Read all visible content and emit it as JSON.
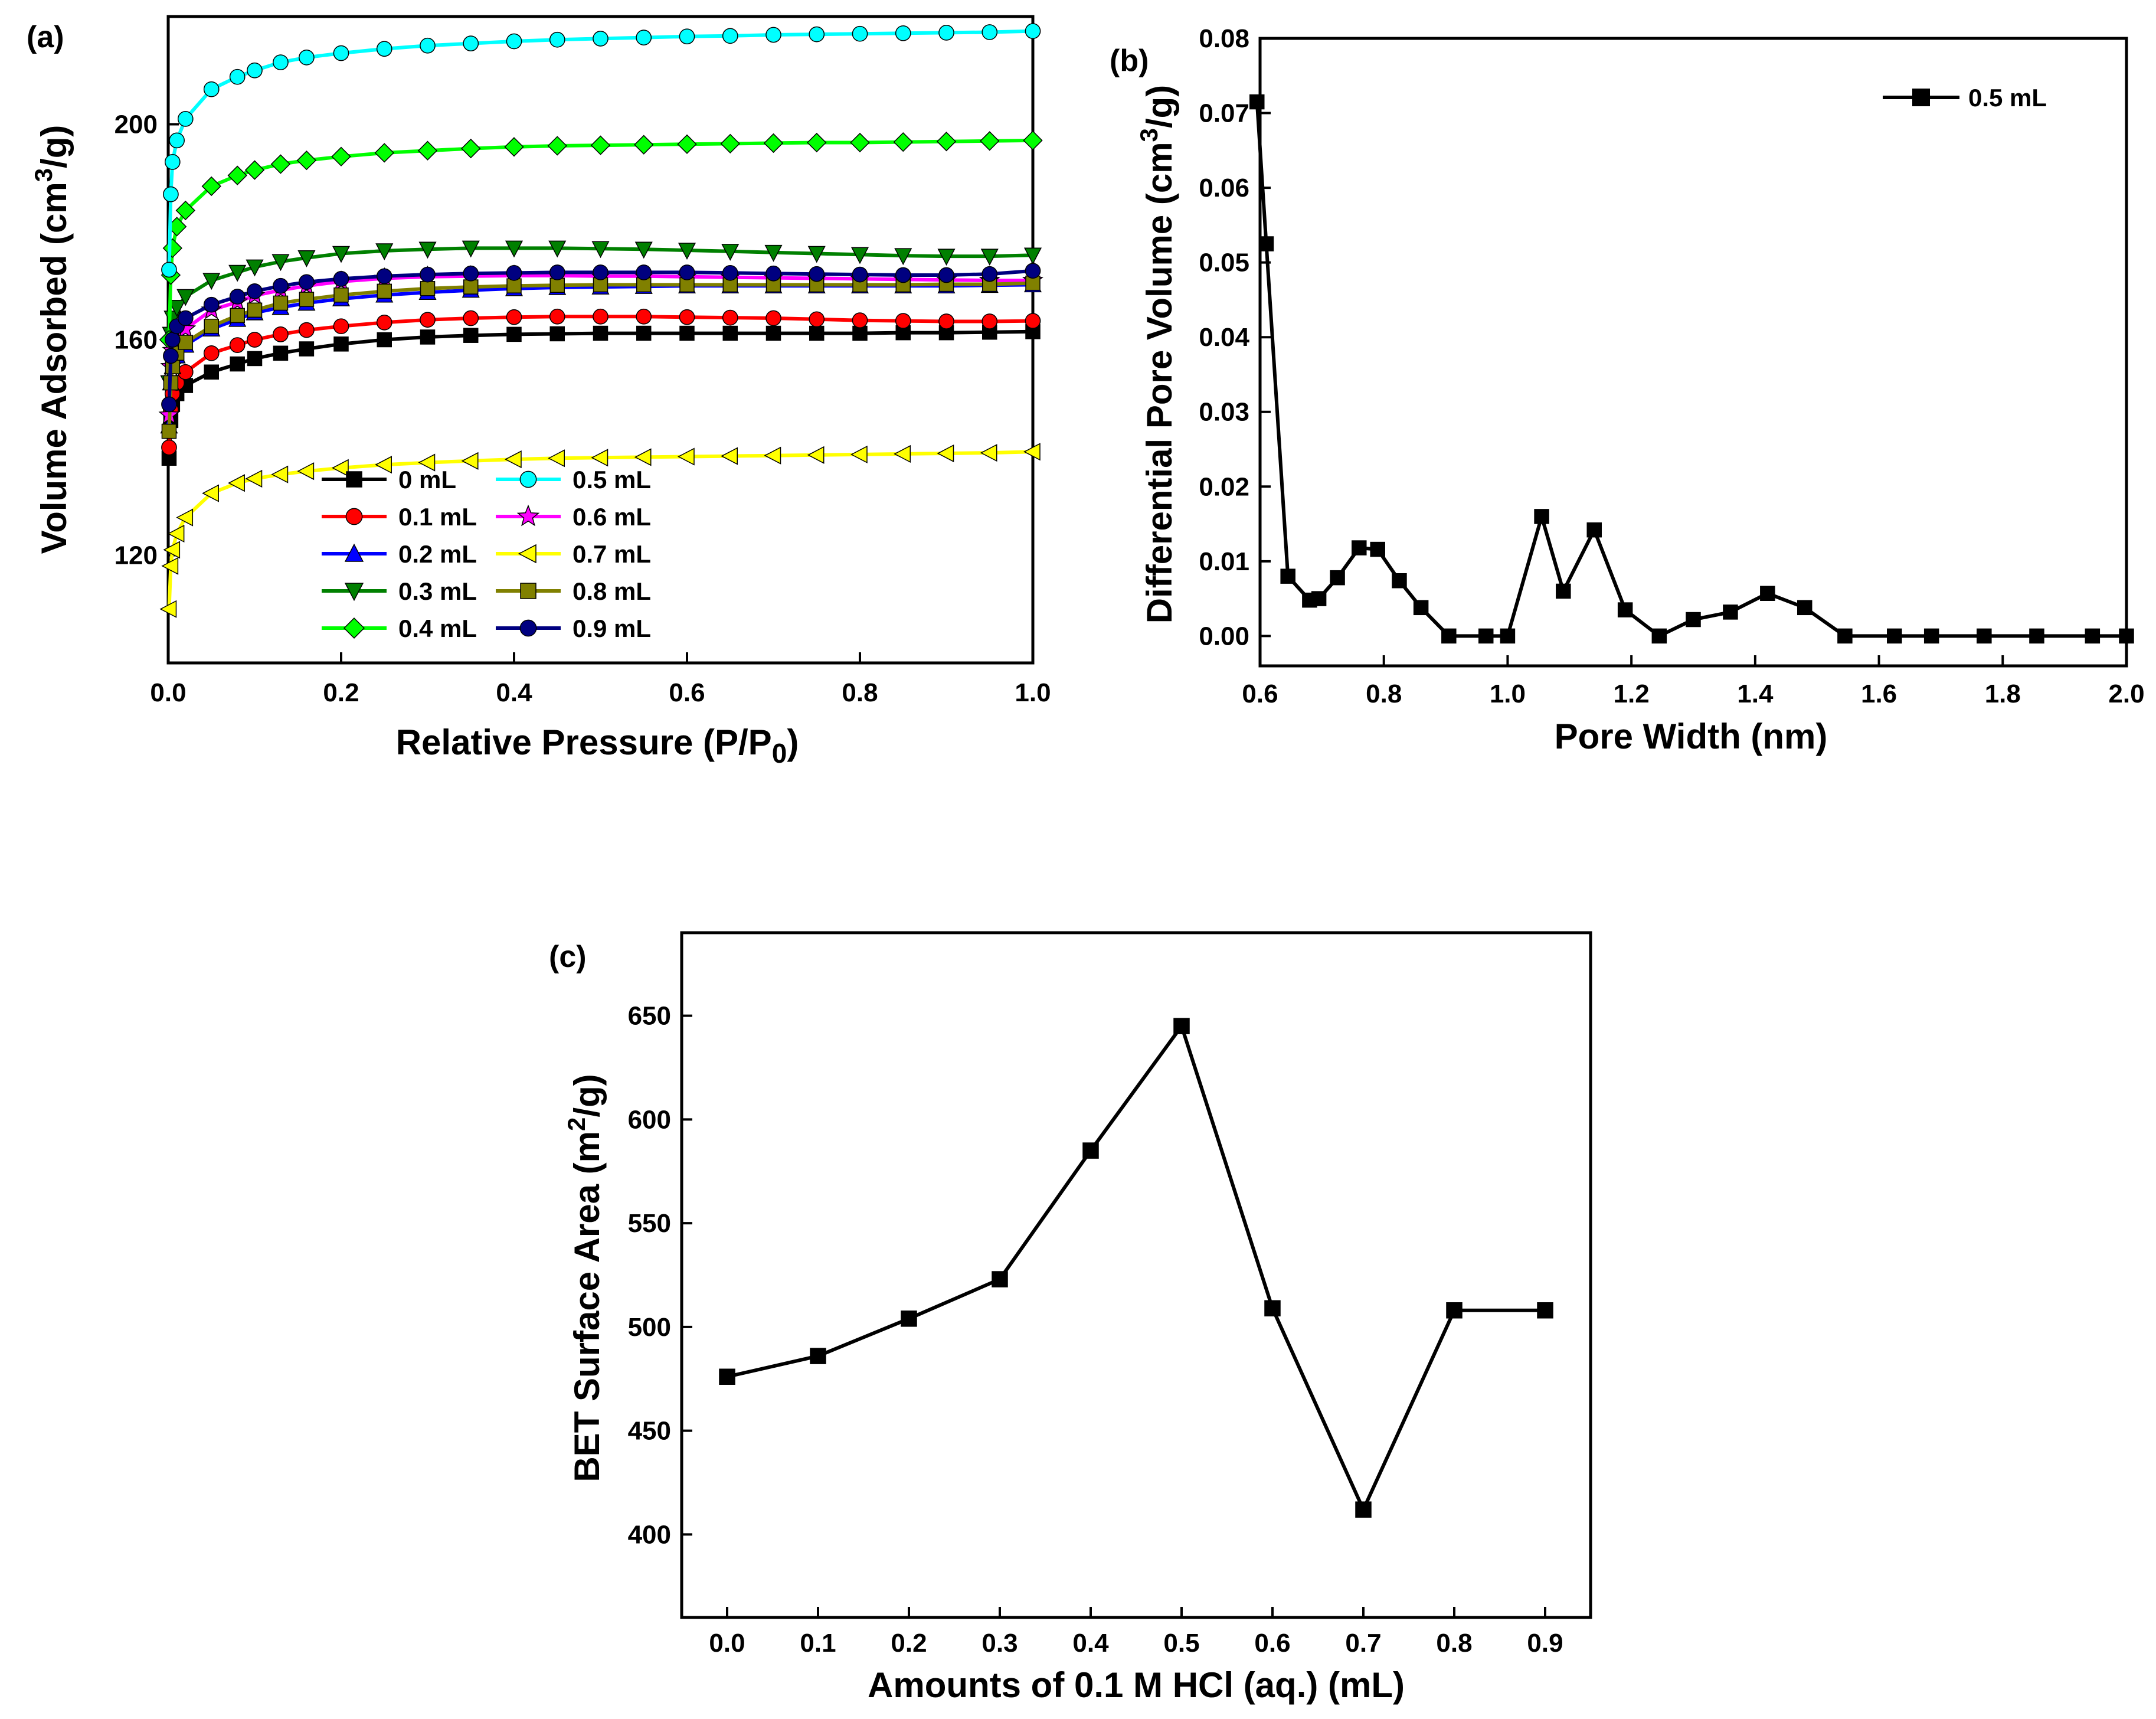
{
  "chart_data": [
    {
      "panel_label": "(a)",
      "type": "line",
      "title": "",
      "xlabel_main": "Relative Pressure (P/P",
      "xlabel_sub": "0",
      "xlabel_end": ")",
      "ylabel_main": "Volume Adsorbed (cm",
      "ylabel_sup": "3",
      "ylabel_end": "/g)",
      "xlim": [
        0,
        1.0
      ],
      "ylim": [
        100,
        220
      ],
      "xticks": [
        "0.0",
        "0.2",
        "0.4",
        "0.6",
        "0.8",
        "1.0"
      ],
      "xtick_values": [
        0,
        0.2,
        0.4,
        0.6,
        0.8,
        1.0
      ],
      "yticks": [
        "120",
        "160",
        "200"
      ],
      "ytick_values": [
        120,
        160,
        200
      ],
      "legend_position": "bottom-center",
      "x": [
        0.001,
        0.003,
        0.005,
        0.01,
        0.02,
        0.05,
        0.08,
        0.1,
        0.13,
        0.16,
        0.2,
        0.25,
        0.3,
        0.35,
        0.4,
        0.45,
        0.5,
        0.55,
        0.6,
        0.65,
        0.7,
        0.75,
        0.8,
        0.85,
        0.9,
        0.95,
        1.0
      ],
      "series": [
        {
          "name": "0 mL",
          "color": "#000000",
          "marker": "square",
          "values": [
            138,
            145,
            148,
            150,
            151.5,
            154,
            155.5,
            156.5,
            157.5,
            158.3,
            159.2,
            160,
            160.5,
            160.8,
            161,
            161.1,
            161.2,
            161.2,
            161.2,
            161.2,
            161.2,
            161.2,
            161.2,
            161.3,
            161.3,
            161.4,
            161.5
          ]
        },
        {
          "name": "0.1 mL",
          "color": "#ff0000",
          "marker": "circle",
          "values": [
            140,
            147,
            150,
            152,
            154,
            157.5,
            159,
            160,
            161,
            161.8,
            162.5,
            163.2,
            163.7,
            164,
            164.2,
            164.3,
            164.3,
            164.3,
            164.2,
            164.1,
            164,
            163.8,
            163.6,
            163.5,
            163.4,
            163.4,
            163.5
          ]
        },
        {
          "name": "0.2 mL",
          "color": "#0000ff",
          "marker": "triangle-up",
          "values": [
            144,
            152,
            155,
            157,
            159,
            162,
            163.8,
            165,
            166,
            166.8,
            167.6,
            168.3,
            168.8,
            169.2,
            169.5,
            169.7,
            169.8,
            169.9,
            170,
            170,
            170,
            170,
            170,
            170,
            170,
            170.1,
            170.2
          ]
        },
        {
          "name": "0.3 mL",
          "color": "#008000",
          "marker": "triangle-down",
          "values": [
            152,
            161,
            164,
            166,
            168,
            171,
            172.5,
            173.5,
            174.5,
            175.2,
            176,
            176.5,
            176.8,
            177,
            177,
            177,
            176.9,
            176.8,
            176.6,
            176.4,
            176.2,
            176,
            175.8,
            175.6,
            175.5,
            175.5,
            175.7
          ]
        },
        {
          "name": "0.4 mL",
          "color": "#00ff00",
          "marker": "diamond",
          "values": [
            160,
            172,
            177,
            181,
            184,
            188.5,
            190.5,
            191.5,
            192.6,
            193.3,
            194,
            194.7,
            195.1,
            195.5,
            195.8,
            196,
            196.1,
            196.2,
            196.3,
            196.4,
            196.5,
            196.6,
            196.6,
            196.7,
            196.8,
            196.9,
            197
          ]
        },
        {
          "name": "0.5 mL",
          "color": "#00ffff",
          "marker": "circle",
          "values": [
            173,
            187,
            193,
            197,
            201,
            206.5,
            208.8,
            210,
            211.5,
            212.4,
            213.2,
            214,
            214.6,
            215,
            215.4,
            215.7,
            215.9,
            216.1,
            216.3,
            216.4,
            216.6,
            216.7,
            216.8,
            216.9,
            217,
            217.1,
            217.3
          ]
        },
        {
          "name": "0.6 mL",
          "color": "#ff00ff",
          "marker": "star",
          "values": [
            146,
            155,
            158,
            160,
            162,
            165.5,
            167,
            168.2,
            169.2,
            170,
            170.8,
            171.4,
            171.7,
            171.8,
            171.9,
            171.9,
            171.8,
            171.8,
            171.7,
            171.6,
            171.5,
            171.4,
            171.3,
            171.2,
            171.1,
            171,
            171
          ]
        },
        {
          "name": "0.7 mL",
          "color": "#ffff00",
          "marker": "triangle-left",
          "values": [
            110,
            118,
            121,
            124,
            127,
            131.5,
            133.4,
            134.2,
            135,
            135.6,
            136.2,
            136.8,
            137.2,
            137.5,
            137.8,
            138,
            138.1,
            138.2,
            138.3,
            138.4,
            138.5,
            138.6,
            138.7,
            138.8,
            138.9,
            139,
            139.2
          ]
        },
        {
          "name": "0.8 mL",
          "color": "#808000",
          "marker": "square",
          "values": [
            143,
            152,
            155,
            157.5,
            159.5,
            162.5,
            164.5,
            165.5,
            166.8,
            167.5,
            168.3,
            169,
            169.5,
            169.8,
            170,
            170.1,
            170.2,
            170.2,
            170.2,
            170.2,
            170.2,
            170.2,
            170.2,
            170.2,
            170.3,
            170.3,
            170.5
          ]
        },
        {
          "name": "0.9 mL",
          "color": "#000080",
          "marker": "circle",
          "values": [
            148,
            157,
            160,
            162.5,
            164,
            166.5,
            168,
            169,
            170,
            170.7,
            171.3,
            171.8,
            172.1,
            172.3,
            172.4,
            172.5,
            172.5,
            172.5,
            172.5,
            172.4,
            172.3,
            172.2,
            172.1,
            172,
            172,
            172.2,
            172.8
          ]
        }
      ]
    },
    {
      "panel_label": "(b)",
      "type": "line",
      "title": "",
      "xlabel": "Pore Width (nm)",
      "ylabel_main": "Differential Pore Volume (cm",
      "ylabel_sup": "3",
      "ylabel_end": "/g)",
      "xlim": [
        0.6,
        2.0
      ],
      "ylim": [
        -0.004,
        0.08
      ],
      "xticks": [
        "0.6",
        "0.8",
        "1.0",
        "1.2",
        "1.4",
        "1.6",
        "1.8",
        "2.0"
      ],
      "xtick_values": [
        0.6,
        0.8,
        1.0,
        1.2,
        1.4,
        1.6,
        1.8,
        2.0
      ],
      "yticks": [
        "0.00",
        "0.01",
        "0.02",
        "0.03",
        "0.04",
        "0.05",
        "0.06",
        "0.07",
        "0.08"
      ],
      "ytick_values": [
        0,
        0.01,
        0.02,
        0.03,
        0.04,
        0.05,
        0.06,
        0.07,
        0.08
      ],
      "legend_position": "top-right",
      "series": [
        {
          "name": "0.5 mL",
          "color": "#000000",
          "marker": "square",
          "x": [
            0.595,
            0.61,
            0.645,
            0.68,
            0.695,
            0.725,
            0.76,
            0.79,
            0.825,
            0.86,
            0.905,
            0.965,
            1.0,
            1.055,
            1.09,
            1.14,
            1.19,
            1.245,
            1.3,
            1.36,
            1.42,
            1.48,
            1.545,
            1.625,
            1.685,
            1.77,
            1.855,
            1.945,
            2.0
          ],
          "values": [
            0.0715,
            0.0525,
            0.008,
            0.0048,
            0.005,
            0.0078,
            0.0118,
            0.0116,
            0.0074,
            0.0038,
            0.0,
            0.0,
            0.0,
            0.016,
            0.006,
            0.0142,
            0.0035,
            0.0,
            0.0022,
            0.0032,
            0.0057,
            0.0038,
            0.0,
            0.0,
            0.0,
            0.0,
            0.0,
            0.0,
            0.0
          ]
        }
      ]
    },
    {
      "panel_label": "(c)",
      "type": "line",
      "title": "",
      "xlabel": "Amounts of 0.1 M HCl (aq.) (mL)",
      "ylabel_main": "BET Surface Area (m",
      "ylabel_sup": "2",
      "ylabel_end": "/g)",
      "xlim": [
        -0.05,
        0.95
      ],
      "ylim": [
        360,
        690
      ],
      "xticks": [
        "0.0",
        "0.1",
        "0.2",
        "0.3",
        "0.4",
        "0.5",
        "0.6",
        "0.7",
        "0.8",
        "0.9"
      ],
      "xtick_values": [
        0,
        0.1,
        0.2,
        0.3,
        0.4,
        0.5,
        0.6,
        0.7,
        0.8,
        0.9
      ],
      "yticks": [
        "400",
        "450",
        "500",
        "550",
        "600",
        "650"
      ],
      "ytick_values": [
        400,
        450,
        500,
        550,
        600,
        650
      ],
      "legend_position": "none",
      "series": [
        {
          "name": "BET",
          "color": "#000000",
          "marker": "square",
          "x": [
            0.0,
            0.1,
            0.2,
            0.3,
            0.4,
            0.5,
            0.6,
            0.7,
            0.8,
            0.9
          ],
          "values": [
            476,
            486,
            504,
            523,
            585,
            645,
            509,
            412,
            508,
            508
          ]
        }
      ]
    }
  ]
}
